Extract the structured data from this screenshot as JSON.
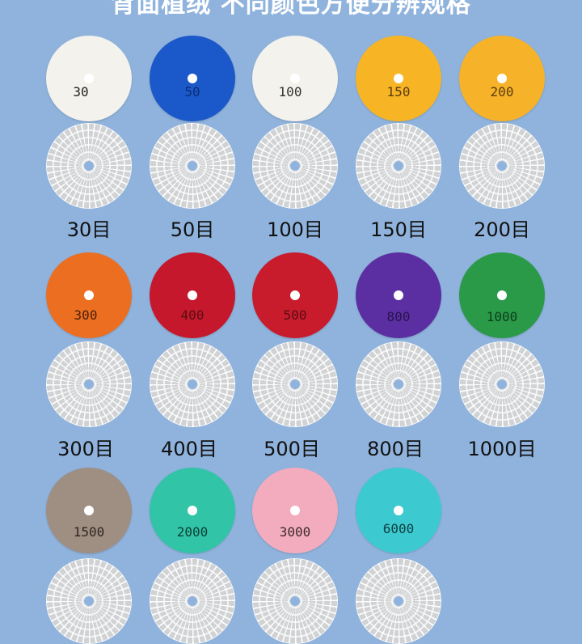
{
  "header": {
    "title": "背面植绒 不同颜色方便分辨规格"
  },
  "discs": [
    {
      "number": "30",
      "label": "30目",
      "color": "#f4f2ec",
      "text_color": "#222"
    },
    {
      "number": "50",
      "label": "50目",
      "color": "#1b58c9",
      "text_color": "#0b2f73"
    },
    {
      "number": "100",
      "label": "100目",
      "color": "#f3f2ec",
      "text_color": "#333"
    },
    {
      "number": "150",
      "label": "150目",
      "color": "#f7b526",
      "text_color": "#5a3c10"
    },
    {
      "number": "200",
      "label": "200目",
      "color": "#f6b229",
      "text_color": "#5a3c10"
    },
    {
      "number": "300",
      "label": "300目",
      "color": "#ec6e21",
      "text_color": "#4a2108"
    },
    {
      "number": "400",
      "label": "400目",
      "color": "#c5182c",
      "text_color": "#5a0d12"
    },
    {
      "number": "500",
      "label": "500目",
      "color": "#c81c2d",
      "text_color": "#5a0d12"
    },
    {
      "number": "800",
      "label": "800目",
      "color": "#5b2fa2",
      "text_color": "#2a1350"
    },
    {
      "number": "1000",
      "label": "1000目",
      "color": "#2a9a49",
      "text_color": "#0d3d1b"
    },
    {
      "number": "1500",
      "label": "",
      "color": "#9f8e82",
      "text_color": "#2e2620"
    },
    {
      "number": "2000",
      "label": "",
      "color": "#31c4a7",
      "text_color": "#0d3f35"
    },
    {
      "number": "3000",
      "label": "",
      "color": "#f3acbe",
      "text_color": "#3d2a2e"
    },
    {
      "number": "6000",
      "label": "",
      "color": "#3ccad0",
      "text_color": "#0e4043"
    }
  ]
}
